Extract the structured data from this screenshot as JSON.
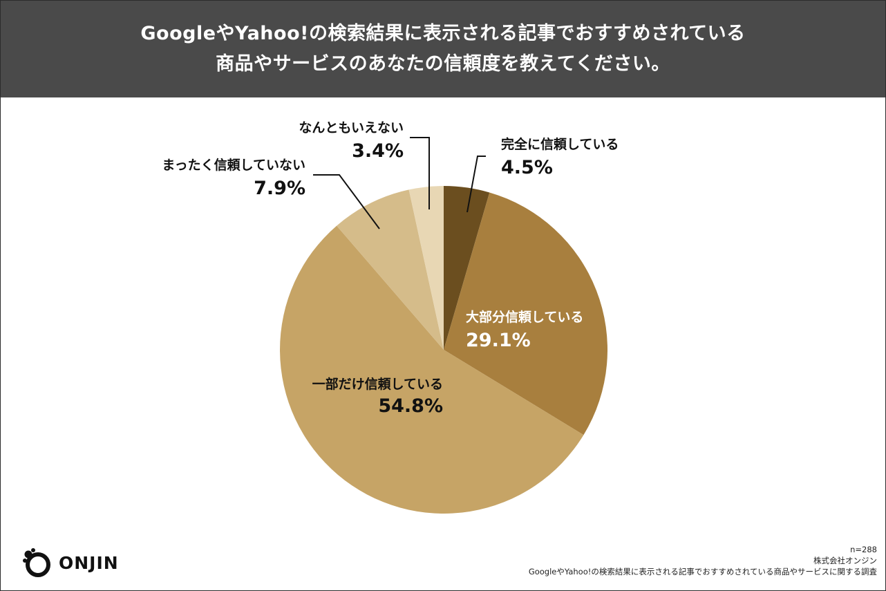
{
  "header": {
    "title_line1": "GoogleやYahoo!の検索結果に表示される記事でおすすめされている",
    "title_line2": "商品やサービスのあなたの信頼度を教えてください。"
  },
  "chart_data": {
    "type": "pie",
    "title": "GoogleやYahoo!の検索結果に表示される記事でおすすめされている商品やサービスのあなたの信頼度を教えてください。",
    "start": "12 o'clock, clockwise",
    "slices": [
      {
        "label": "完全に信頼している",
        "value": 4.5,
        "value_label": "4.5%",
        "color": "#6b4e1f",
        "label_color": "#111111"
      },
      {
        "label": "大部分信頼している",
        "value": 29.1,
        "value_label": "29.1%",
        "color": "#a87f3e",
        "label_color": "#ffffff"
      },
      {
        "label": "一部だけ信頼している",
        "value": 54.8,
        "value_label": "54.8%",
        "color": "#c6a466",
        "label_color": "#111111"
      },
      {
        "label": "まったく信頼していない",
        "value": 7.9,
        "value_label": "7.9%",
        "color": "#d5bc8a",
        "label_color": "#111111"
      },
      {
        "label": "なんともいえない",
        "value": 3.4,
        "value_label": "3.4%",
        "color": "#e8d7b4",
        "label_color": "#111111"
      }
    ]
  },
  "logo": {
    "text": "ONJIN"
  },
  "footer": {
    "sample": "n=288",
    "company": "株式会社オンジン",
    "survey": "GoogleやYahoo!の検索結果に表示される記事でおすすめされている商品やサービスに関する調査"
  }
}
